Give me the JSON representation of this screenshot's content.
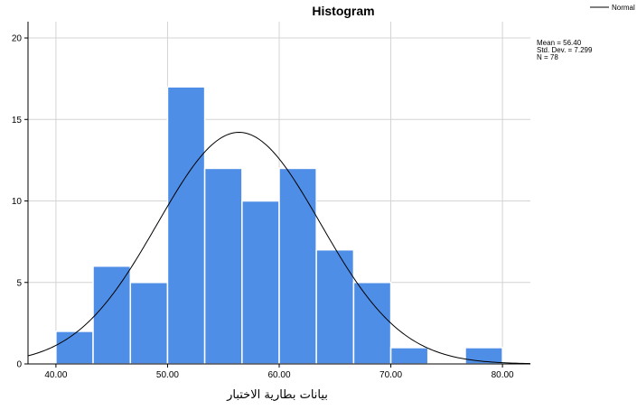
{
  "chart_data": {
    "type": "histogram",
    "title": "Histogram",
    "xlabel": "بيانات بطارية الاختبار",
    "ylabel": "",
    "xlim": [
      37.5,
      82.5
    ],
    "ylim": [
      0,
      21
    ],
    "x_ticks": [
      "40.00",
      "50.00",
      "60.00",
      "70.00",
      "80.00"
    ],
    "y_ticks": [
      "0",
      "5",
      "10",
      "15",
      "20"
    ],
    "bin_width": 3.333,
    "bins": [
      {
        "from": 40.0,
        "to": 43.33,
        "count": 2
      },
      {
        "from": 43.33,
        "to": 46.67,
        "count": 6
      },
      {
        "from": 46.67,
        "to": 50.0,
        "count": 5
      },
      {
        "from": 50.0,
        "to": 53.33,
        "count": 17
      },
      {
        "from": 53.33,
        "to": 56.67,
        "count": 12
      },
      {
        "from": 56.67,
        "to": 60.0,
        "count": 10
      },
      {
        "from": 60.0,
        "to": 63.33,
        "count": 12
      },
      {
        "from": 63.33,
        "to": 66.67,
        "count": 7
      },
      {
        "from": 66.67,
        "to": 70.0,
        "count": 5
      },
      {
        "from": 70.0,
        "to": 73.33,
        "count": 1
      },
      {
        "from": 73.33,
        "to": 76.67,
        "count": 0
      },
      {
        "from": 76.67,
        "to": 80.0,
        "count": 1
      }
    ],
    "normal_curve": {
      "legend": "Normal",
      "mean": 56.4,
      "sd": 7.299,
      "n": 78
    },
    "stats": [
      "Mean = 56.40",
      "Std. Dev. = 7.299",
      "N = 78"
    ],
    "grid": true,
    "legend_position": "top-right",
    "colors": {
      "bar": "#4f8ee6",
      "bar_edge": "#ffffff",
      "grid": "#d4d4d4",
      "curve": "#000000",
      "axis": "#000000"
    }
  }
}
